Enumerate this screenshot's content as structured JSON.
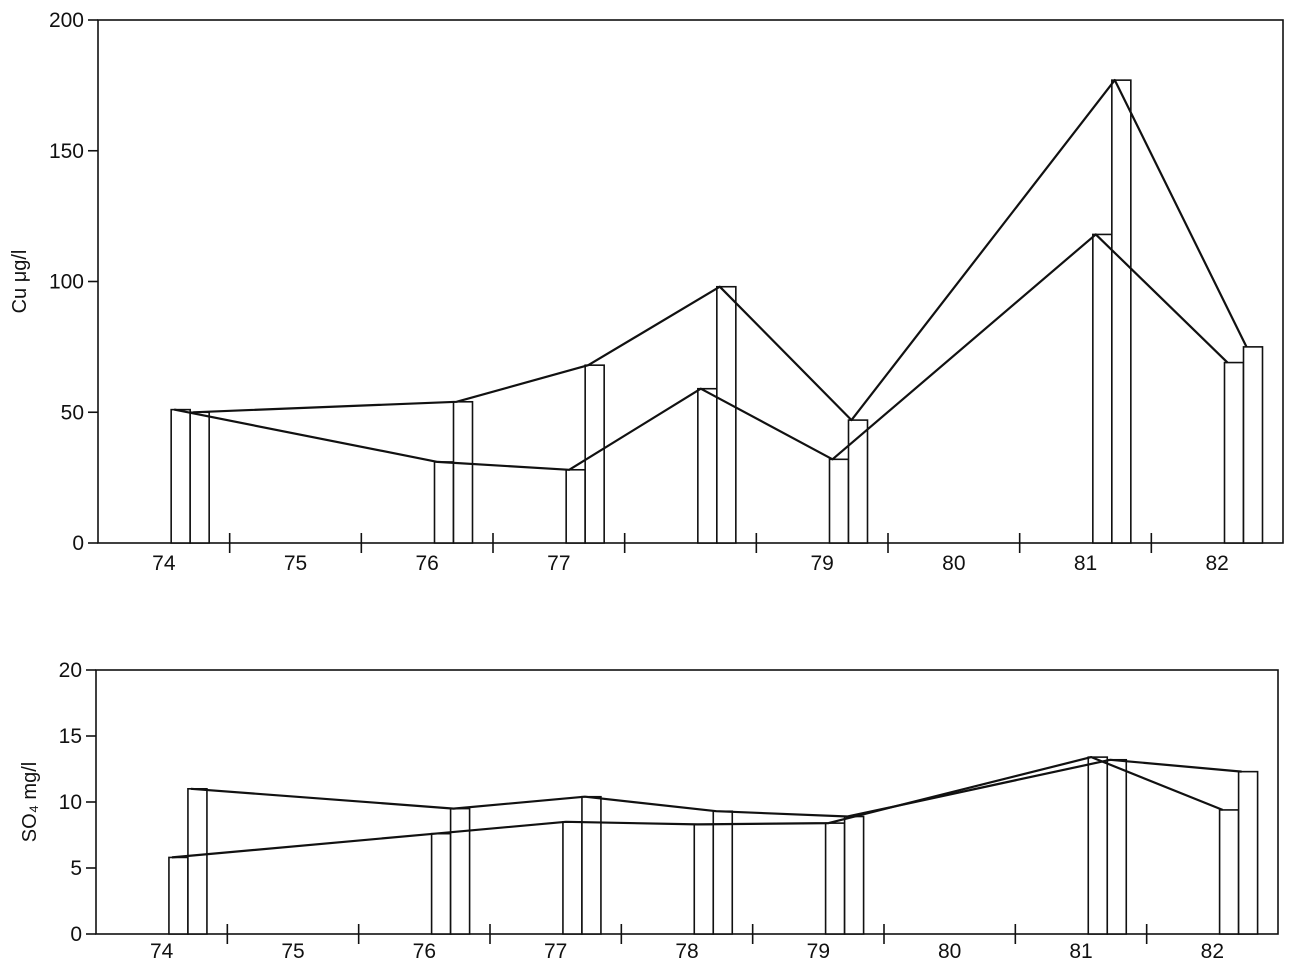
{
  "chart_data": [
    {
      "type": "bar",
      "title": "",
      "ylabel": "Cu μg/l",
      "xlabel": "",
      "ylim": [
        0,
        200
      ],
      "yticks": [
        0,
        50,
        100,
        150,
        200
      ],
      "xlim": [
        74,
        83
      ],
      "x_tick_labels": [
        {
          "x": 74,
          "label": "74"
        },
        {
          "x": 75,
          "label": "75"
        },
        {
          "x": 76,
          "label": "76"
        },
        {
          "x": 77,
          "label": "77"
        },
        {
          "x": 79,
          "label": "79"
        },
        {
          "x": 80,
          "label": "80"
        },
        {
          "x": 81,
          "label": "81"
        },
        {
          "x": 82,
          "label": "82"
        }
      ],
      "x": [
        74.7,
        76.7,
        77.7,
        78.7,
        79.7,
        81.7,
        82.7
      ],
      "series": [
        {
          "values": [
            51,
            31,
            28,
            59,
            32,
            118,
            69
          ]
        },
        {
          "values": [
            50,
            54,
            68,
            98,
            47,
            177,
            75
          ]
        }
      ],
      "grid": false,
      "legend": "none"
    },
    {
      "type": "bar",
      "title": "",
      "ylabel": "SO₄ mg/l",
      "xlabel": "",
      "ylim": [
        0,
        20
      ],
      "yticks": [
        0,
        5,
        10,
        15,
        20
      ],
      "xlim": [
        74,
        83
      ],
      "x_tick_labels": [
        {
          "x": 74,
          "label": "74"
        },
        {
          "x": 75,
          "label": "75"
        },
        {
          "x": 76,
          "label": "76"
        },
        {
          "x": 77,
          "label": "77"
        },
        {
          "x": 78,
          "label": "78"
        },
        {
          "x": 79,
          "label": "79"
        },
        {
          "x": 80,
          "label": "80"
        },
        {
          "x": 81,
          "label": "81"
        },
        {
          "x": 82,
          "label": "82"
        }
      ],
      "x": [
        74.7,
        76.7,
        77.7,
        78.7,
        79.7,
        81.7,
        82.7
      ],
      "series": [
        {
          "values": [
            5.8,
            7.6,
            8.5,
            8.3,
            8.4,
            13.4,
            9.4
          ]
        },
        {
          "values": [
            11.0,
            9.5,
            10.4,
            9.3,
            8.9,
            13.2,
            12.3
          ]
        }
      ],
      "grid": false,
      "legend": "none"
    }
  ]
}
